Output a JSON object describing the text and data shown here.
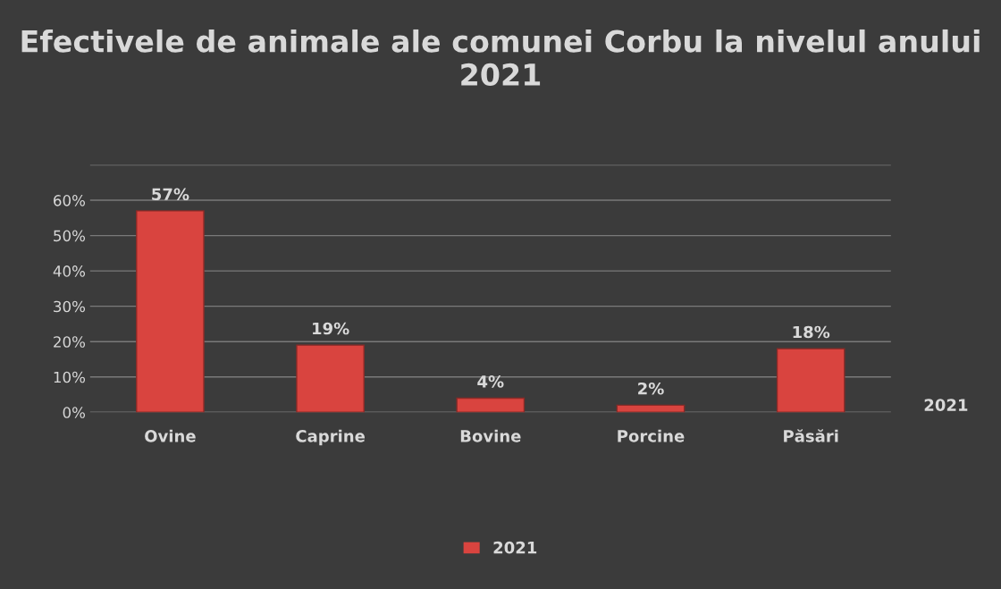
{
  "chart_data": {
    "type": "bar",
    "title": "Efectivele de animale ale comunei Corbu la nivelul anului 2021",
    "categories": [
      "Ovine",
      "Caprine",
      "Bovine",
      "Porcine",
      "Păsări"
    ],
    "series": [
      {
        "name": "2021",
        "color": "#d9443f",
        "values": [
          57,
          19,
          4,
          2,
          18
        ],
        "value_labels": [
          "57%",
          "19%",
          "4%",
          "2%",
          "18%"
        ]
      }
    ],
    "ylim": [
      0,
      70
    ],
    "yticks": [
      {
        "value": 0,
        "label": "0%"
      },
      {
        "value": 10,
        "label": "10%"
      },
      {
        "value": 20,
        "label": "20%"
      },
      {
        "value": 30,
        "label": "30%"
      },
      {
        "value": 40,
        "label": "40%"
      },
      {
        "value": 50,
        "label": "50%"
      },
      {
        "value": 60,
        "label": "60%"
      },
      {
        "value": 70,
        "label": null
      }
    ],
    "grid": "y",
    "legend": "bottom",
    "annotations": [
      "2021"
    ]
  }
}
